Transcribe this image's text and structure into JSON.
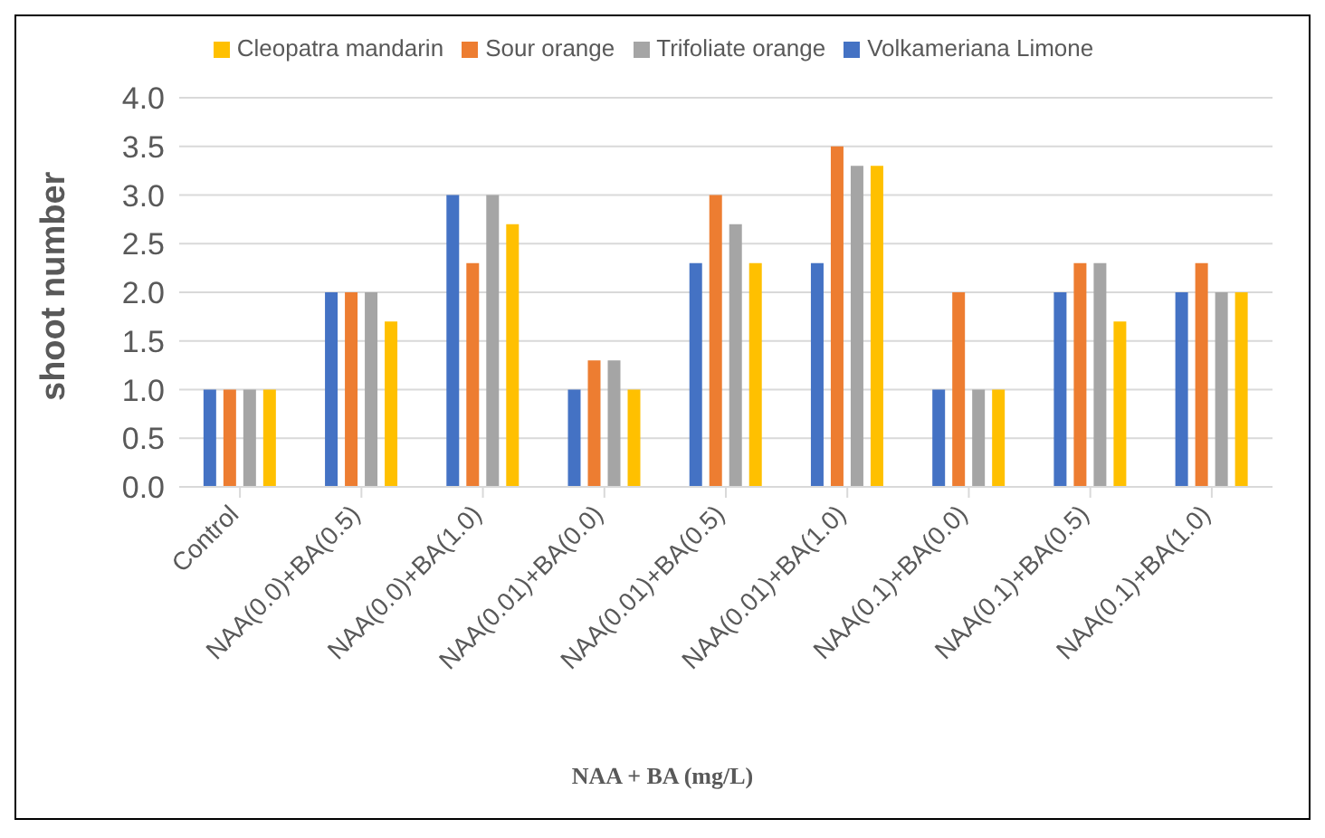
{
  "chart_data": {
    "type": "bar",
    "xlabel": "NAA + BA (mg/L)",
    "ylabel": "shoot number",
    "categories": [
      "Control",
      "NAA(0.0)+BA(0.5)",
      "NAA(0.0)+BA(1.0)",
      "NAA(0.01)+BA(0.0)",
      "NAA(0.01)+BA(0.5)",
      "NAA(0.01)+BA(1.0)",
      "NAA(0.1)+BA(0.0)",
      "NAA(0.1)+BA(0.5)",
      "NAA(0.1)+BA(1.0)"
    ],
    "series": [
      {
        "name": "Volkameriana Limone",
        "color": "#4472c4",
        "values": [
          1,
          2,
          3,
          1,
          2.3,
          2.3,
          1,
          2,
          2
        ]
      },
      {
        "name": "Sour orange",
        "color": "#ed7d31",
        "values": [
          1,
          2,
          2.3,
          1.3,
          3,
          3.5,
          2,
          2.3,
          2.3
        ]
      },
      {
        "name": "Trifoliate orange",
        "color": "#a5a5a5",
        "values": [
          1,
          2,
          3,
          1.3,
          2.7,
          3.3,
          1,
          2.3,
          2
        ]
      },
      {
        "name": "Cleopatra mandarin",
        "color": "#ffc000",
        "values": [
          1,
          1.7,
          2.7,
          1,
          2.3,
          3.3,
          1,
          1.7,
          2
        ]
      }
    ],
    "ylim": [
      0,
      4
    ],
    "yticks": [
      {
        "value": 0,
        "label": "0.0"
      },
      {
        "value": 0.5,
        "label": "0.5"
      },
      {
        "value": 1,
        "label": "1.0"
      },
      {
        "value": 1.5,
        "label": "1.5"
      },
      {
        "value": 2,
        "label": "2.0"
      },
      {
        "value": 2.5,
        "label": "2.5"
      },
      {
        "value": 3,
        "label": "3.0"
      },
      {
        "value": 3.5,
        "label": "3.5"
      },
      {
        "value": 4,
        "label": "4.0"
      }
    ],
    "grid": "y",
    "legend": "top"
  }
}
